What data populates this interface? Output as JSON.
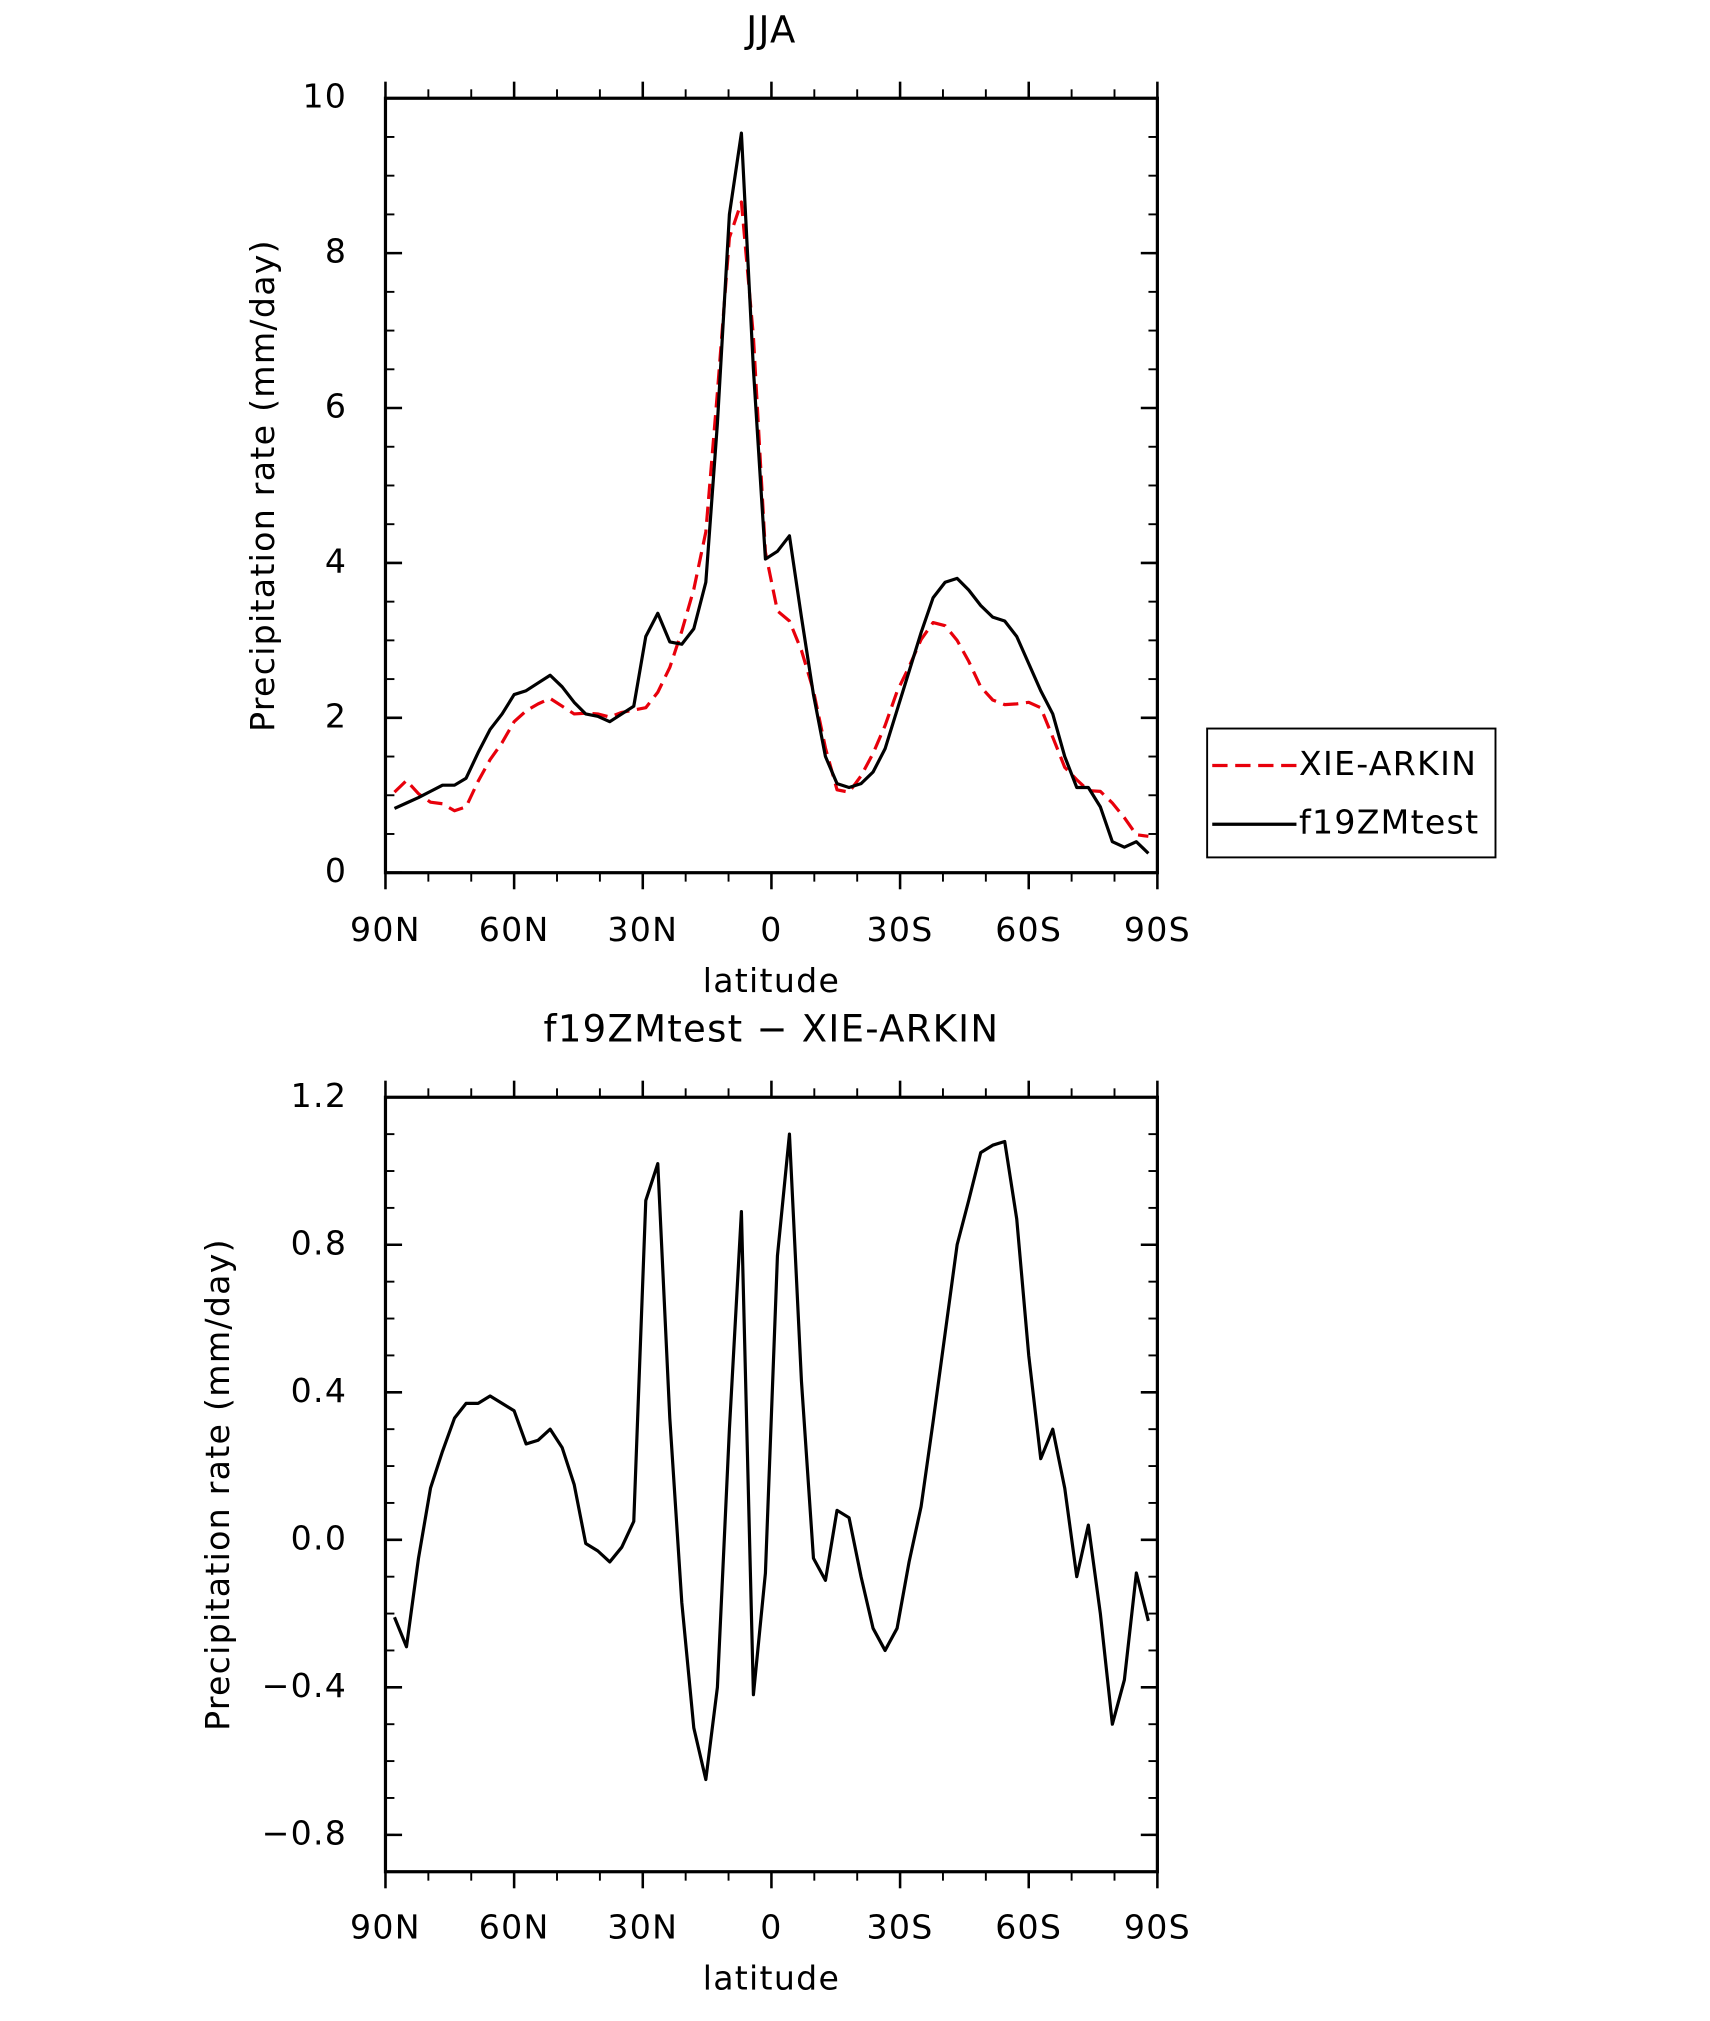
{
  "chart_data": [
    {
      "type": "line",
      "title": "JJA",
      "xlabel": "latitude",
      "ylabel": "Precipitation rate (mm/day)",
      "x": [
        87.9,
        85.1,
        82.3,
        79.5,
        76.7,
        73.9,
        71.2,
        68.4,
        65.6,
        62.8,
        60.0,
        57.2,
        54.4,
        51.6,
        48.8,
        46.0,
        43.3,
        40.5,
        37.7,
        34.9,
        32.1,
        29.3,
        26.5,
        23.7,
        20.9,
        18.1,
        15.3,
        12.6,
        9.8,
        7.0,
        4.2,
        1.4,
        -1.4,
        -4.2,
        -7.0,
        -9.8,
        -12.6,
        -15.3,
        -18.1,
        -20.9,
        -23.7,
        -26.5,
        -29.3,
        -32.1,
        -34.9,
        -37.7,
        -40.5,
        -43.3,
        -46.0,
        -48.8,
        -51.6,
        -54.4,
        -57.2,
        -60.0,
        -62.8,
        -65.6,
        -68.4,
        -71.2,
        -73.9,
        -76.7,
        -79.5,
        -82.3,
        -85.1,
        -87.9
      ],
      "series": [
        {
          "name": "XIE-ARKIN",
          "color": "#e8000b",
          "style": "dashed",
          "values": [
            1.04,
            1.19,
            1.02,
            0.91,
            0.89,
            0.8,
            0.85,
            1.18,
            1.46,
            1.68,
            1.95,
            2.09,
            2.18,
            2.25,
            2.15,
            2.05,
            2.06,
            2.05,
            2.01,
            2.07,
            2.1,
            2.13,
            2.33,
            2.65,
            3.12,
            3.66,
            4.4,
            6.2,
            8.2,
            8.66,
            6.92,
            4.14,
            3.38,
            3.25,
            2.87,
            2.35,
            1.61,
            1.07,
            1.04,
            1.25,
            1.54,
            1.9,
            2.34,
            2.66,
            3.01,
            3.23,
            3.19,
            3.0,
            2.73,
            2.4,
            2.23,
            2.17,
            2.18,
            2.2,
            2.13,
            1.75,
            1.36,
            1.2,
            1.06,
            1.05,
            0.9,
            0.71,
            0.49,
            0.47
          ]
        },
        {
          "name": "f19ZMtest",
          "color": "#000000",
          "style": "solid",
          "values": [
            0.83,
            0.9,
            0.97,
            1.05,
            1.13,
            1.13,
            1.22,
            1.55,
            1.85,
            2.05,
            2.3,
            2.35,
            2.45,
            2.55,
            2.4,
            2.2,
            2.05,
            2.02,
            1.95,
            2.05,
            2.15,
            3.05,
            3.35,
            2.98,
            2.95,
            3.15,
            3.75,
            5.8,
            8.5,
            9.55,
            6.5,
            4.05,
            4.15,
            4.35,
            3.3,
            2.3,
            1.5,
            1.15,
            1.1,
            1.15,
            1.3,
            1.6,
            2.1,
            2.6,
            3.1,
            3.55,
            3.75,
            3.8,
            3.65,
            3.45,
            3.3,
            3.25,
            3.05,
            2.7,
            2.35,
            2.05,
            1.5,
            1.1,
            1.1,
            0.85,
            0.4,
            0.33,
            0.4,
            0.25
          ]
        }
      ],
      "xlim": [
        90,
        -90
      ],
      "xticks": [
        {
          "value": 90,
          "label": "90N"
        },
        {
          "value": 60,
          "label": "60N"
        },
        {
          "value": 30,
          "label": "30N"
        },
        0,
        {
          "value": -30,
          "label": "30S"
        },
        {
          "value": -60,
          "label": "60S"
        },
        {
          "value": -90,
          "label": "90S"
        }
      ],
      "ylim": [
        0,
        10
      ],
      "yticks": [
        0,
        2,
        4,
        6,
        8,
        10
      ],
      "legend": "right"
    },
    {
      "type": "line",
      "title": "f19ZMtest − XIE-ARKIN",
      "xlabel": "latitude",
      "ylabel": "Precipitation rate (mm/day)",
      "x": [
        87.9,
        85.1,
        82.3,
        79.5,
        76.7,
        73.9,
        71.2,
        68.4,
        65.6,
        62.8,
        60.0,
        57.2,
        54.4,
        51.6,
        48.8,
        46.0,
        43.3,
        40.5,
        37.7,
        34.9,
        32.1,
        29.3,
        26.5,
        23.7,
        20.9,
        18.1,
        15.3,
        12.6,
        9.8,
        7.0,
        4.2,
        1.4,
        -1.4,
        -4.2,
        -7.0,
        -9.8,
        -12.6,
        -15.3,
        -18.1,
        -20.9,
        -23.7,
        -26.5,
        -29.3,
        -32.1,
        -34.9,
        -37.7,
        -40.5,
        -43.3,
        -46.0,
        -48.8,
        -51.6,
        -54.4,
        -57.2,
        -60.0,
        -62.8,
        -65.6,
        -68.4,
        -71.2,
        -73.9,
        -76.7,
        -79.5,
        -82.3,
        -85.1,
        -87.9
      ],
      "series": [
        {
          "name": "f19ZMtest − XIE-ARKIN",
          "color": "#000000",
          "style": "solid",
          "values": [
            -0.21,
            -0.29,
            -0.05,
            0.14,
            0.24,
            0.33,
            0.37,
            0.37,
            0.39,
            0.37,
            0.35,
            0.26,
            0.27,
            0.3,
            0.25,
            0.15,
            -0.01,
            -0.03,
            -0.06,
            -0.02,
            0.05,
            0.92,
            1.02,
            0.33,
            -0.17,
            -0.51,
            -0.65,
            -0.4,
            0.3,
            0.89,
            -0.42,
            -0.09,
            0.77,
            1.1,
            0.43,
            -0.05,
            -0.11,
            0.08,
            0.06,
            -0.1,
            -0.24,
            -0.3,
            -0.24,
            -0.06,
            0.09,
            0.32,
            0.56,
            0.8,
            0.92,
            1.05,
            1.07,
            1.08,
            0.87,
            0.5,
            0.22,
            0.3,
            0.14,
            -0.1,
            0.04,
            -0.2,
            -0.5,
            -0.38,
            -0.09,
            -0.22
          ]
        }
      ],
      "xlim": [
        90,
        -90
      ],
      "xticks": [
        {
          "value": 90,
          "label": "90N"
        },
        {
          "value": 60,
          "label": "60N"
        },
        {
          "value": 30,
          "label": "30N"
        },
        0,
        {
          "value": -30,
          "label": "30S"
        },
        {
          "value": -60,
          "label": "60S"
        },
        {
          "value": -90,
          "label": "90S"
        }
      ],
      "ylim": [
        -0.9,
        1.2
      ],
      "yticks": [
        {
          "value": -0.8,
          "label": "−0.8"
        },
        {
          "value": -0.4,
          "label": "−0.4"
        },
        {
          "value": 0,
          "label": "0.0"
        },
        0.4,
        0.8,
        1.2
      ]
    }
  ]
}
